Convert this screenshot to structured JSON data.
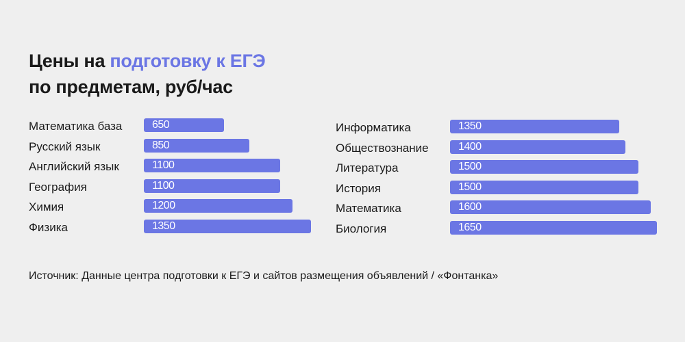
{
  "title": {
    "part1": "Цены на ",
    "accent": "подготовку к ЕГЭ",
    "line2": "по предметам, руб/час"
  },
  "colors": {
    "bar": "#6b76e4",
    "accent": "#6b76e4",
    "background": "#efefef"
  },
  "chart_data": {
    "type": "bar",
    "orientation": "horizontal",
    "unit": "руб/час",
    "groups": [
      {
        "categories": [
          "Математика база",
          "Русский язык",
          "Английский язык",
          "География",
          "Химия",
          "Физика"
        ],
        "values": [
          650,
          850,
          1100,
          1100,
          1200,
          1350
        ],
        "value_labels": [
          "650",
          "850",
          "1100",
          "1100",
          "1200",
          "1350"
        ]
      },
      {
        "categories": [
          "Информатика",
          "Обществознание",
          "Литература",
          "История",
          "Математика",
          "Биология"
        ],
        "values": [
          1350,
          1400,
          1500,
          1500,
          1600,
          1650
        ],
        "value_labels": [
          "1350",
          "1400",
          "1500",
          "1500",
          "1600",
          "1650"
        ]
      }
    ]
  },
  "source": "Источник: Данные центра подготовки к ЕГЭ и сайтов размещения объявлений / «Фонтанка»"
}
